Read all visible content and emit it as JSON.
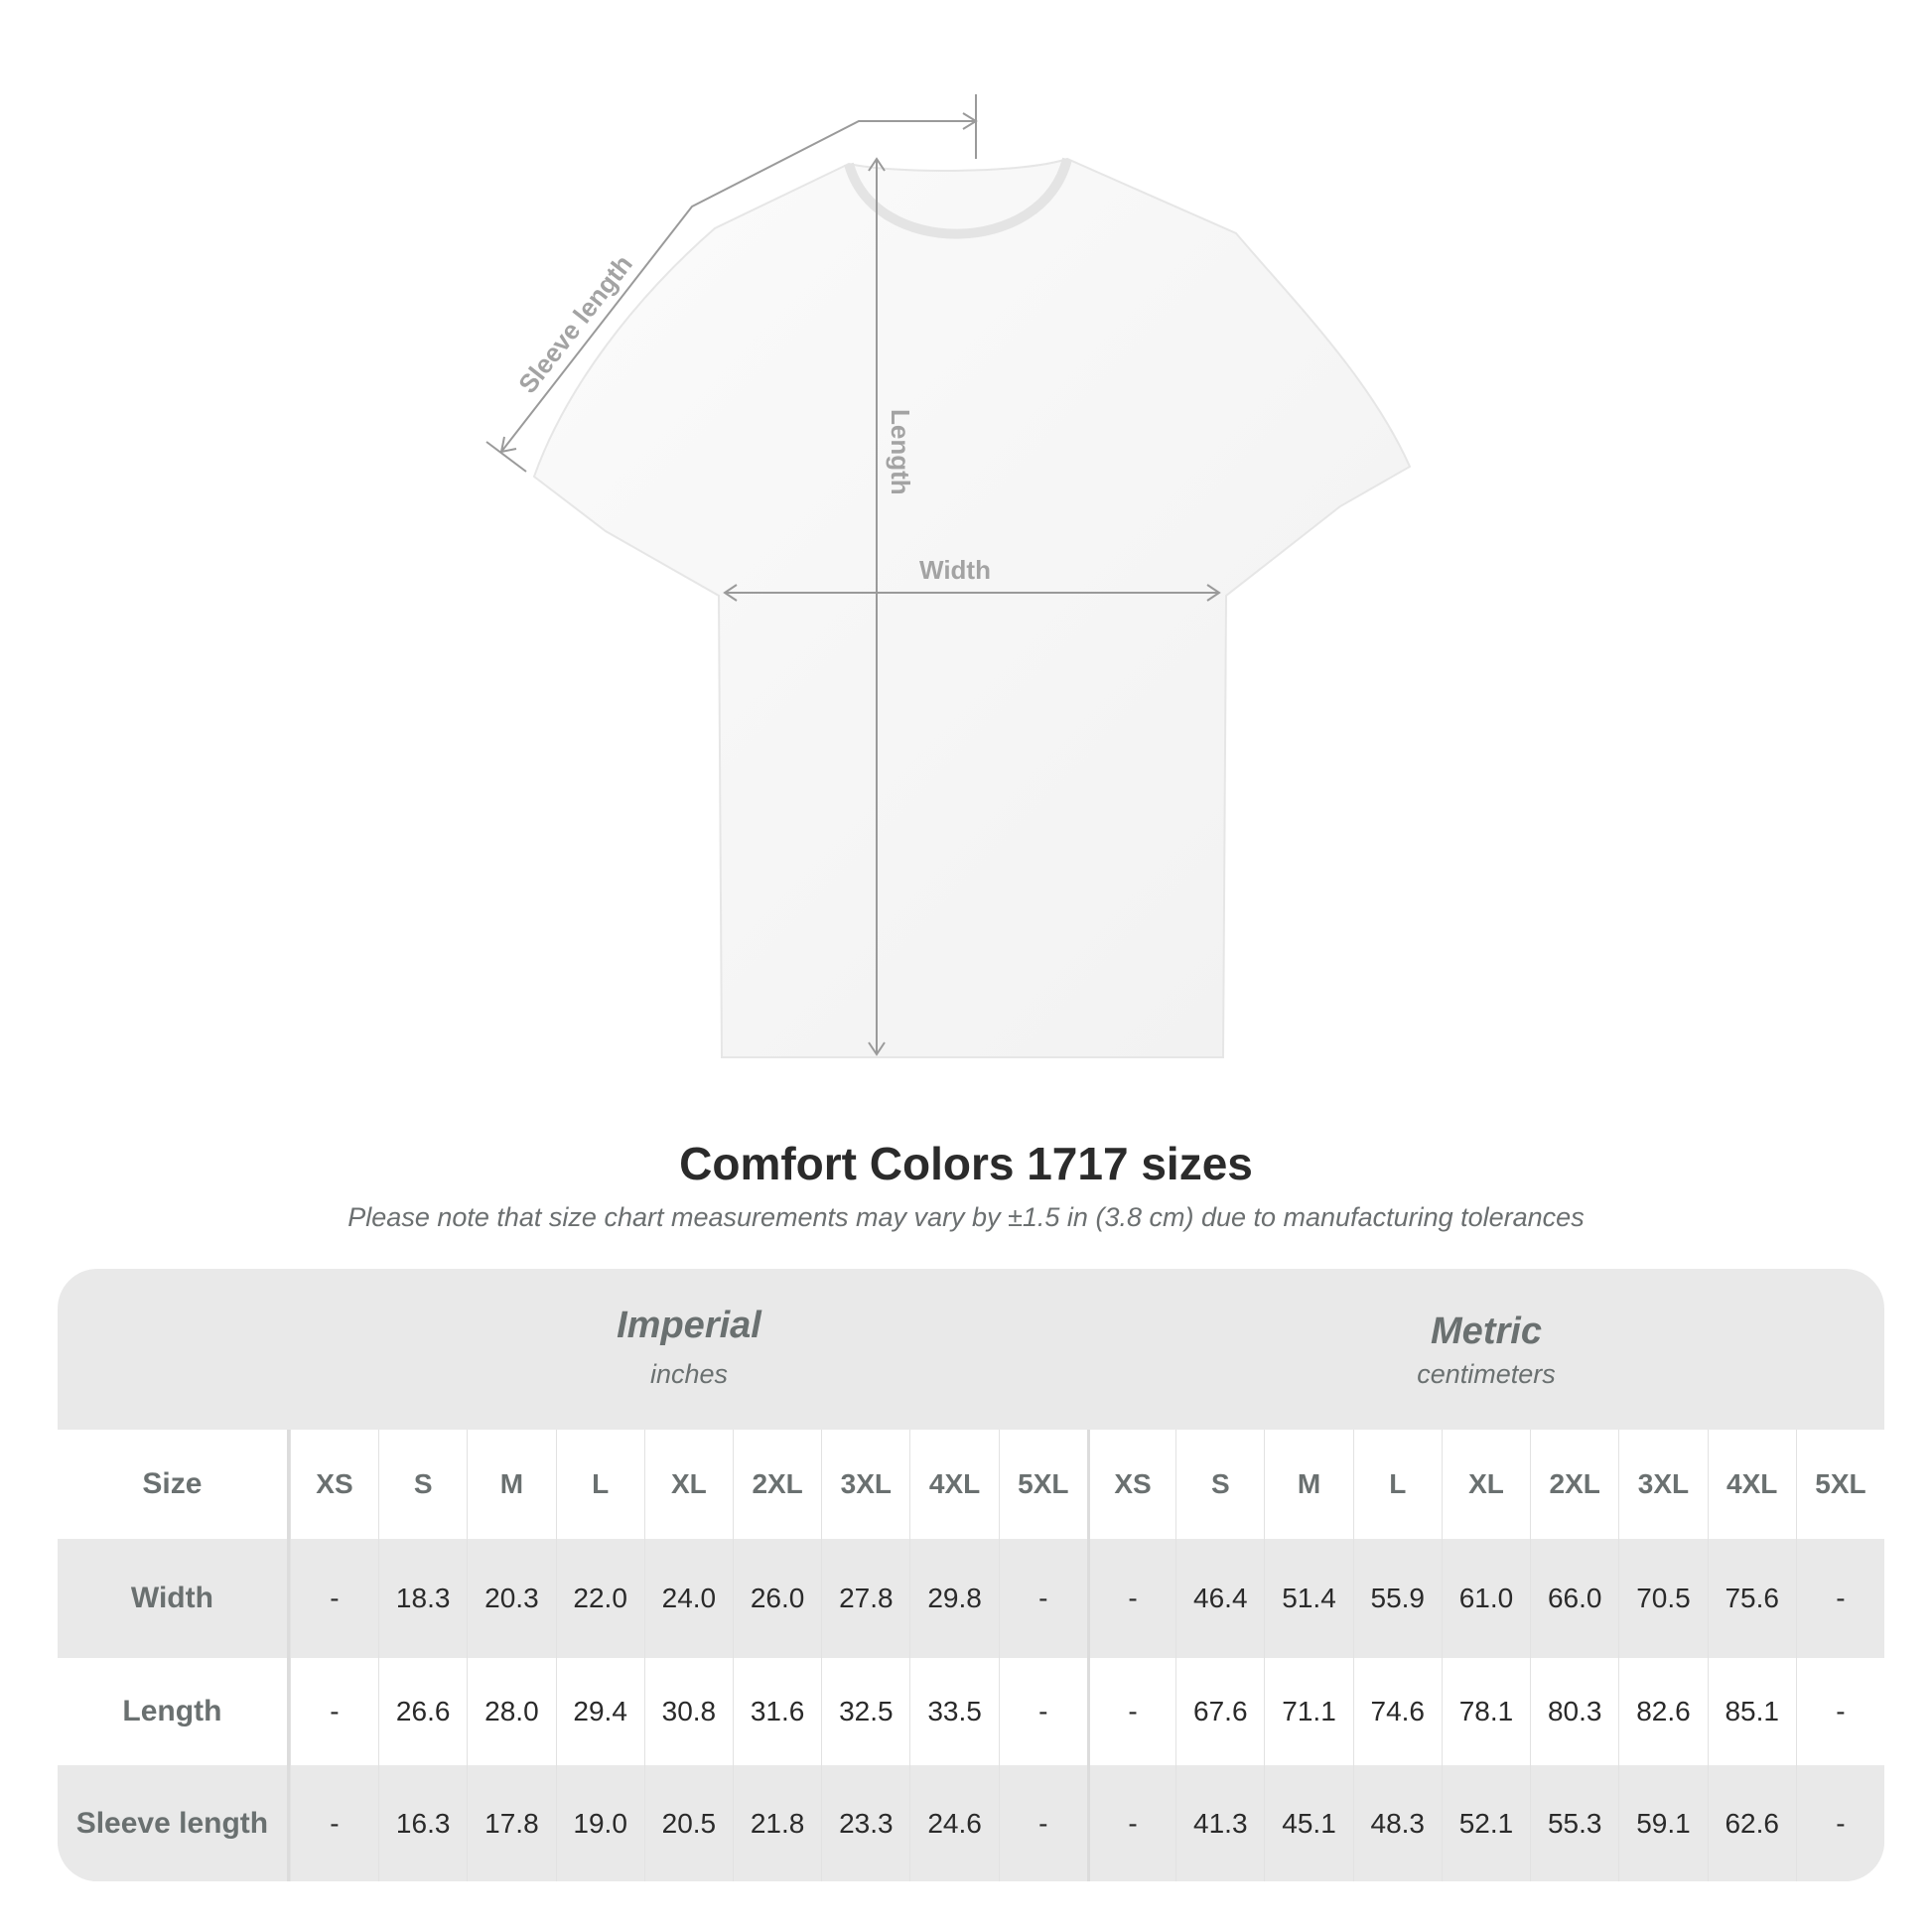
{
  "diagram": {
    "labels": {
      "sleeve": "Sleeve length",
      "length": "Length",
      "width": "Width"
    },
    "line_color": "#9a9a9a"
  },
  "title": "Comfort Colors 1717 sizes",
  "note": "Please note that size chart measurements may vary by ±1.5 in (3.8 cm) due to manufacturing tolerances",
  "table": {
    "imperial": {
      "title": "Imperial",
      "unit": "inches"
    },
    "metric": {
      "title": "Metric",
      "unit": "centimeters"
    },
    "size_label": "Size",
    "sizes": [
      "XS",
      "S",
      "M",
      "L",
      "XL",
      "2XL",
      "3XL",
      "4XL",
      "5XL"
    ],
    "rows": [
      {
        "label": "Width",
        "imperial": [
          "-",
          "18.3",
          "20.3",
          "22.0",
          "24.0",
          "26.0",
          "27.8",
          "29.8",
          "-"
        ],
        "metric": [
          "-",
          "46.4",
          "51.4",
          "55.9",
          "61.0",
          "66.0",
          "70.5",
          "75.6",
          "-"
        ]
      },
      {
        "label": "Length",
        "imperial": [
          "-",
          "26.6",
          "28.0",
          "29.4",
          "30.8",
          "31.6",
          "32.5",
          "33.5",
          "-"
        ],
        "metric": [
          "-",
          "67.6",
          "71.1",
          "74.6",
          "78.1",
          "80.3",
          "82.6",
          "85.1",
          "-"
        ]
      },
      {
        "label": "Sleeve length",
        "imperial": [
          "-",
          "16.3",
          "17.8",
          "19.0",
          "20.5",
          "21.8",
          "23.3",
          "24.6",
          "-"
        ],
        "metric": [
          "-",
          "41.3",
          "45.1",
          "48.3",
          "52.1",
          "55.3",
          "59.1",
          "62.6",
          "-"
        ]
      }
    ]
  }
}
